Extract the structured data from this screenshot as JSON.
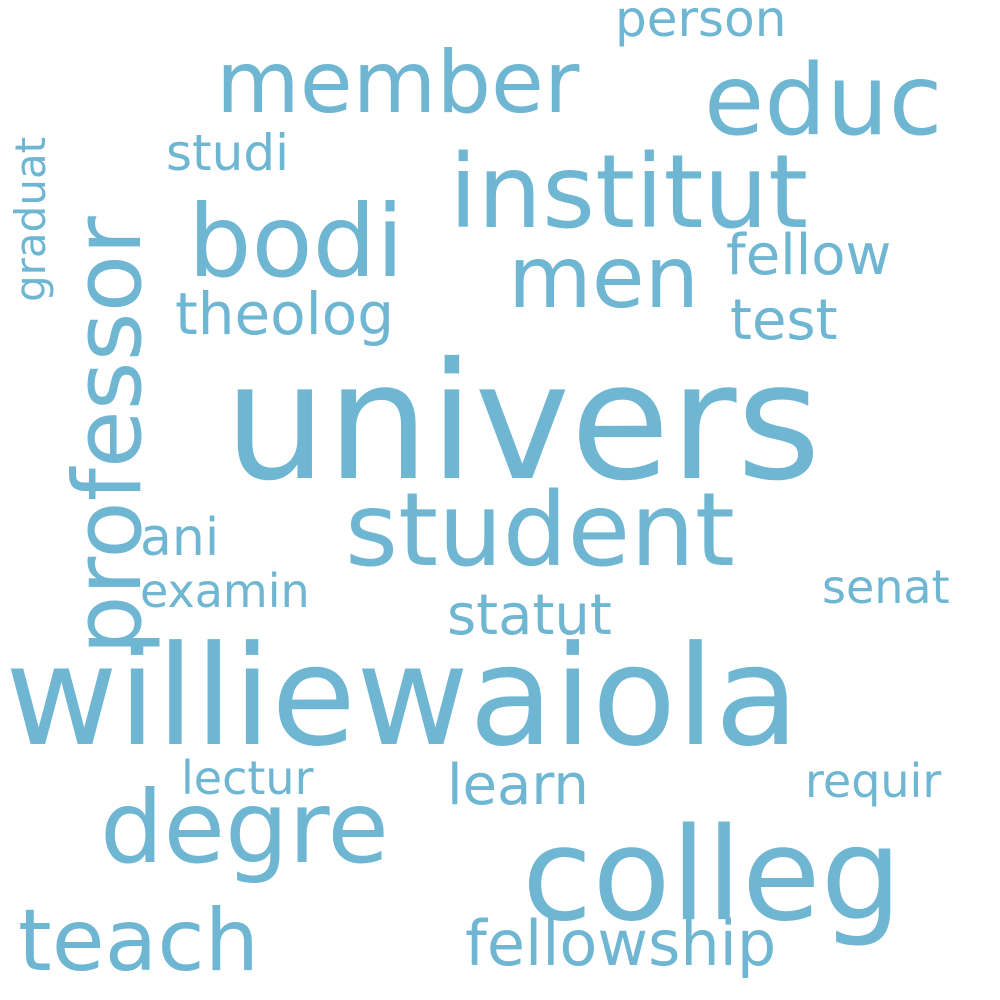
{
  "color": "#6fb6d3",
  "background": "#ffffff",
  "words": {
    "univers": "univers",
    "williewaiola": "williewaiola",
    "colleg": "colleg",
    "professor": "professor",
    "student": "student",
    "institut": "institut",
    "degre": "degre",
    "member": "member",
    "educ": "educ",
    "bodi": "bodi",
    "men": "men",
    "teach": "teach",
    "fellowship": "fellowship",
    "theolog": "theolog",
    "statut": "statut",
    "learn": "learn",
    "fellow": "fellow",
    "test": "test",
    "studi": "studi",
    "person": "person",
    "ani": "ani",
    "examin": "examin",
    "senat": "senat",
    "lectur": "lectur",
    "requir": "requir",
    "graduat": "graduat"
  }
}
